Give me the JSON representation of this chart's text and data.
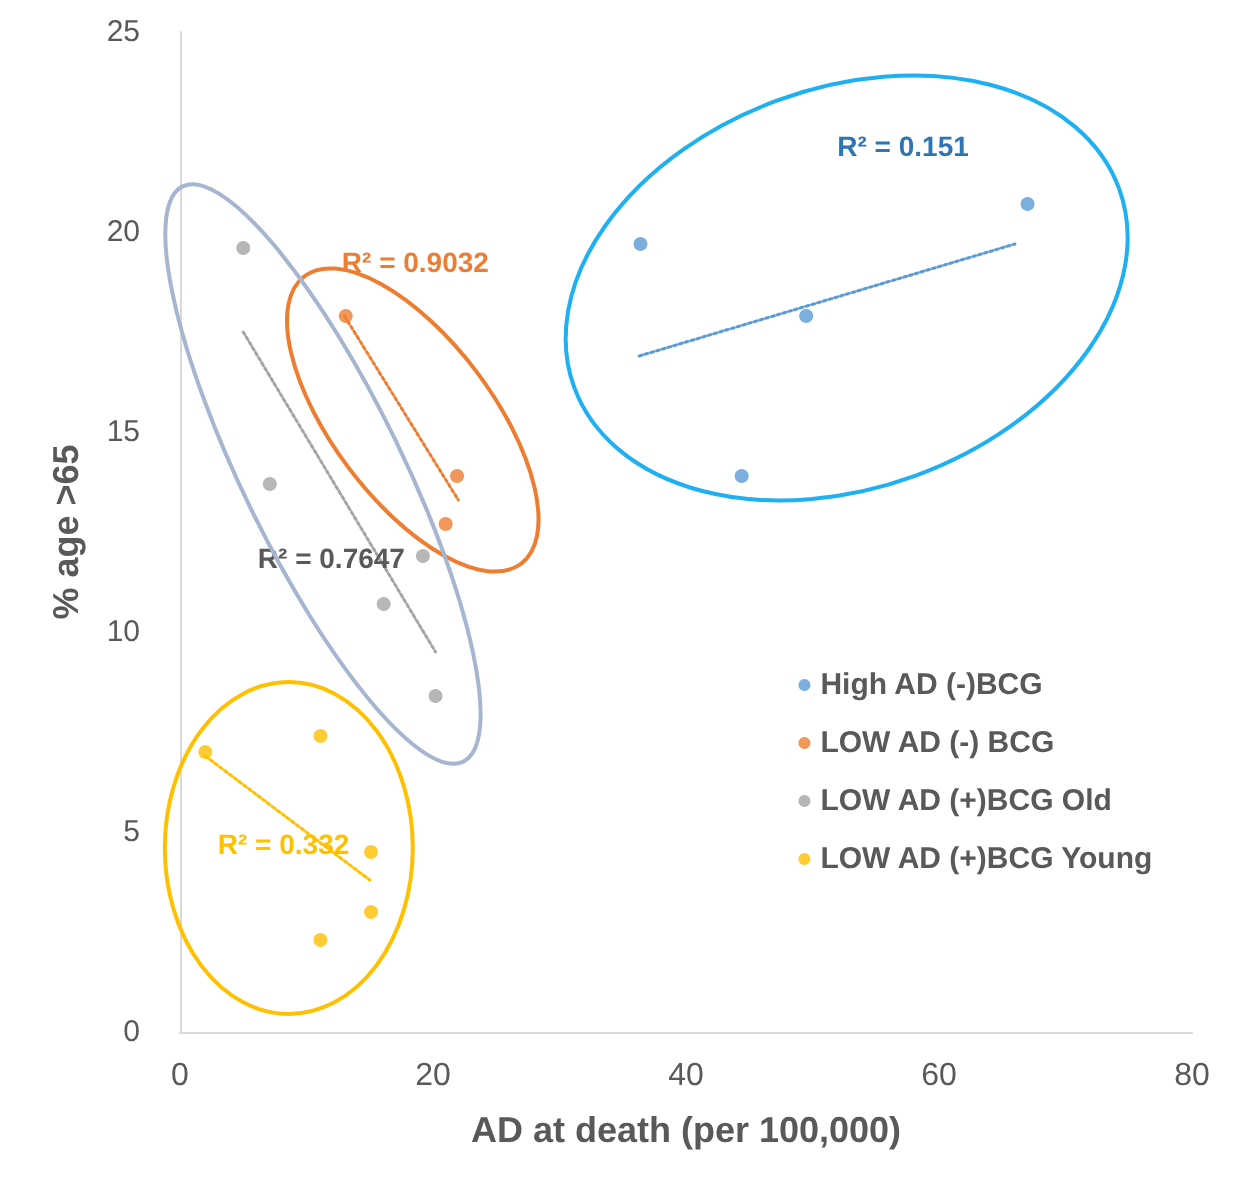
{
  "chart_data": {
    "type": "scatter",
    "xlabel": "AD at death (per 100,000)",
    "ylabel": "% age >65",
    "xlim": [
      0,
      80
    ],
    "xticks": [
      0,
      20,
      40,
      60,
      80
    ],
    "ylim": [
      0,
      25
    ],
    "yticks": [
      0,
      5,
      10,
      15,
      20,
      25
    ],
    "grid": false,
    "legend": "right",
    "marker": "circle",
    "series": [
      {
        "name": "High AD (-)BCG",
        "color": "#5b9bd5",
        "x": [
          36.4,
          49.5,
          44.4,
          67
        ],
        "values": [
          19.7,
          17.9,
          13.9,
          20.7
        ]
      },
      {
        "name": "LOW AD (-) BCG",
        "color": "#ed7d31",
        "x": [
          13.1,
          21.9,
          21
        ],
        "values": [
          17.9,
          13.9,
          12.7
        ]
      },
      {
        "name": "LOW AD (+)BCG Old",
        "color": "#a5a5a5",
        "x": [
          5,
          7.1,
          19.2,
          16.1,
          20.2
        ],
        "values": [
          19.6,
          13.7,
          11.9,
          10.7,
          8.4
        ]
      },
      {
        "name": "LOW AD (+)BCG Young",
        "color": "#ffc000",
        "x": [
          2,
          11.1,
          15.1,
          15.1,
          11.1
        ],
        "values": [
          7,
          7.4,
          4.5,
          3,
          2.3
        ]
      },
      {
        "type": "line",
        "color": "#5b9bd5",
        "line_style": "dotted",
        "marker": "none",
        "x": [
          36.3,
          66
        ],
        "values": [
          16.9,
          19.7
        ]
      },
      {
        "type": "line",
        "color": "#ed7d31",
        "line_style": "dotted",
        "marker": "none",
        "x": [
          13,
          22
        ],
        "values": [
          17.9,
          13.3
        ]
      },
      {
        "type": "line",
        "color": "#a5a5a5",
        "line_style": "dotted",
        "marker": "none",
        "x": [
          5,
          20.2
        ],
        "values": [
          17.5,
          9.5
        ]
      },
      {
        "type": "line",
        "color": "#ffc000",
        "line_style": "dotted",
        "marker": "none",
        "x": [
          2,
          15
        ],
        "values": [
          6.9,
          3.8
        ]
      }
    ],
    "annotations": [
      "R² = 0.151",
      "R² = 0.9032",
      "R² = 0.7647",
      "R² = 0.332"
    ]
  }
}
